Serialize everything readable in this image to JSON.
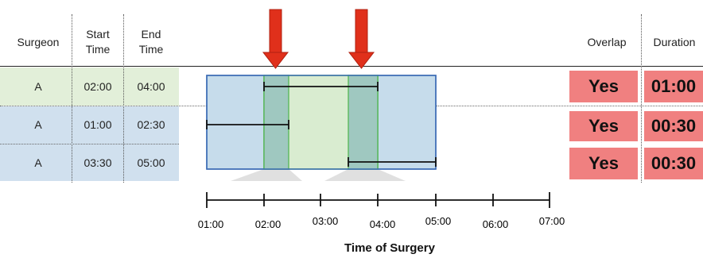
{
  "headers": {
    "surgeon": "Surgeon",
    "start": [
      "Start",
      "Time"
    ],
    "end": [
      "End",
      "Time"
    ],
    "overlap": "Overlap",
    "duration": "Duration"
  },
  "rows": [
    {
      "surgeon": "A",
      "start": "02:00",
      "end": "04:00",
      "overlap": "Yes",
      "duration": "01:00",
      "color": "#e2efd9"
    },
    {
      "surgeon": "A",
      "start": "01:00",
      "end": "02:30",
      "overlap": "Yes",
      "duration": "00:30",
      "color": "#d0e0ee"
    },
    {
      "surgeon": "A",
      "start": "03:30",
      "end": "05:00",
      "overlap": "Yes",
      "duration": "00:30",
      "color": "#d0e0ee"
    }
  ],
  "axis": {
    "title": "Time of Surgery",
    "ticks": [
      "01:00",
      "02:00",
      "03:00",
      "04:00",
      "05:00",
      "06:00",
      "07:00"
    ]
  },
  "colors": {
    "green_fill": "#d9ecd0",
    "blue_fill": "#c6dceb",
    "overlap_fill": "#9fc8c0",
    "blue_border": "#3c6cb5",
    "green_border": "#4db34d",
    "arrow": "#e0301b",
    "result": "#f08080"
  }
}
